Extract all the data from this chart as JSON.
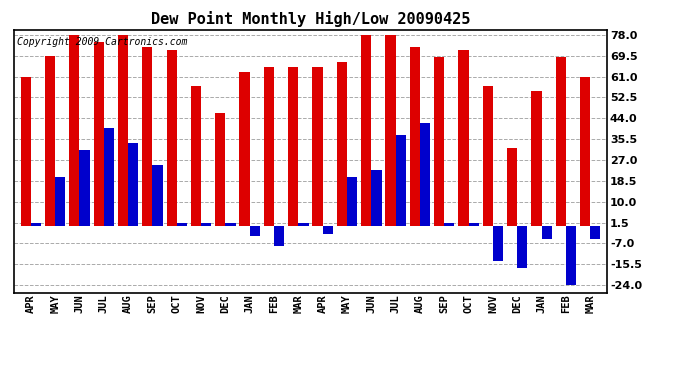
{
  "title": "Dew Point Monthly High/Low 20090425",
  "copyright": "Copyright 2009 Cartronics.com",
  "months": [
    "APR",
    "MAY",
    "JUN",
    "JUL",
    "AUG",
    "SEP",
    "OCT",
    "NOV",
    "DEC",
    "JAN",
    "FEB",
    "MAR",
    "APR",
    "MAY",
    "JUN",
    "JUL",
    "AUG",
    "SEP",
    "OCT",
    "NOV",
    "DEC",
    "JAN",
    "FEB",
    "MAR"
  ],
  "highs": [
    61,
    69.5,
    78,
    75,
    78,
    73,
    72,
    57,
    46,
    63,
    65,
    65,
    65,
    67,
    78,
    78,
    73,
    69,
    72,
    57,
    32,
    55,
    69,
    61
  ],
  "lows": [
    1.5,
    20,
    31,
    40,
    34,
    25,
    1.5,
    1.5,
    1.5,
    -4,
    -8,
    1.5,
    -3,
    20,
    23,
    37,
    42,
    1.5,
    1.5,
    -14,
    -17,
    -5,
    -24,
    -5
  ],
  "high_color": "#dd0000",
  "low_color": "#0000cc",
  "background_color": "#ffffff",
  "grid_color": "#aaaaaa",
  "ylim_min": -27,
  "ylim_max": 80,
  "yticks": [
    -24.0,
    -15.5,
    -7.0,
    1.5,
    10.0,
    18.5,
    27.0,
    35.5,
    44.0,
    52.5,
    61.0,
    69.5,
    78.0
  ],
  "title_fontsize": 11,
  "copyright_fontsize": 7,
  "bar_width": 0.42,
  "fig_width": 6.9,
  "fig_height": 3.75
}
